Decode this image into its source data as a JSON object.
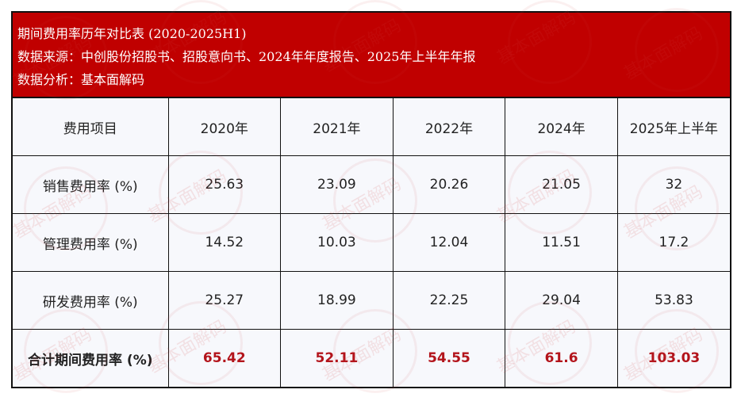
{
  "header": {
    "title": "期间费用率历年对比表 (2020-2025H1)",
    "source": "数据来源：中创股份招股书、招股意向书、2024年年度报告、2025年上半年年报",
    "analysis": "数据分析：基本面解码"
  },
  "watermark": "基本面解码",
  "colors": {
    "header_bg": "#c00000",
    "total_value": "#b3141b"
  },
  "table": {
    "columns": [
      "费用项目",
      "2020年",
      "2021年",
      "2022年",
      "2024年",
      "2025年上半年"
    ],
    "rows": [
      {
        "label": "销售费用率 (%)",
        "values": [
          "25.63",
          "23.09",
          "20.26",
          "21.05",
          "32"
        ]
      },
      {
        "label": "管理费用率 (%)",
        "values": [
          "14.52",
          "10.03",
          "12.04",
          "11.51",
          "17.2"
        ]
      },
      {
        "label": "研发费用率 (%)",
        "values": [
          "25.27",
          "18.99",
          "22.25",
          "29.04",
          "53.83"
        ]
      }
    ],
    "total": {
      "label": "合计期间费用率 (%)",
      "values": [
        "65.42",
        "52.11",
        "54.55",
        "61.6",
        "103.03"
      ]
    }
  }
}
